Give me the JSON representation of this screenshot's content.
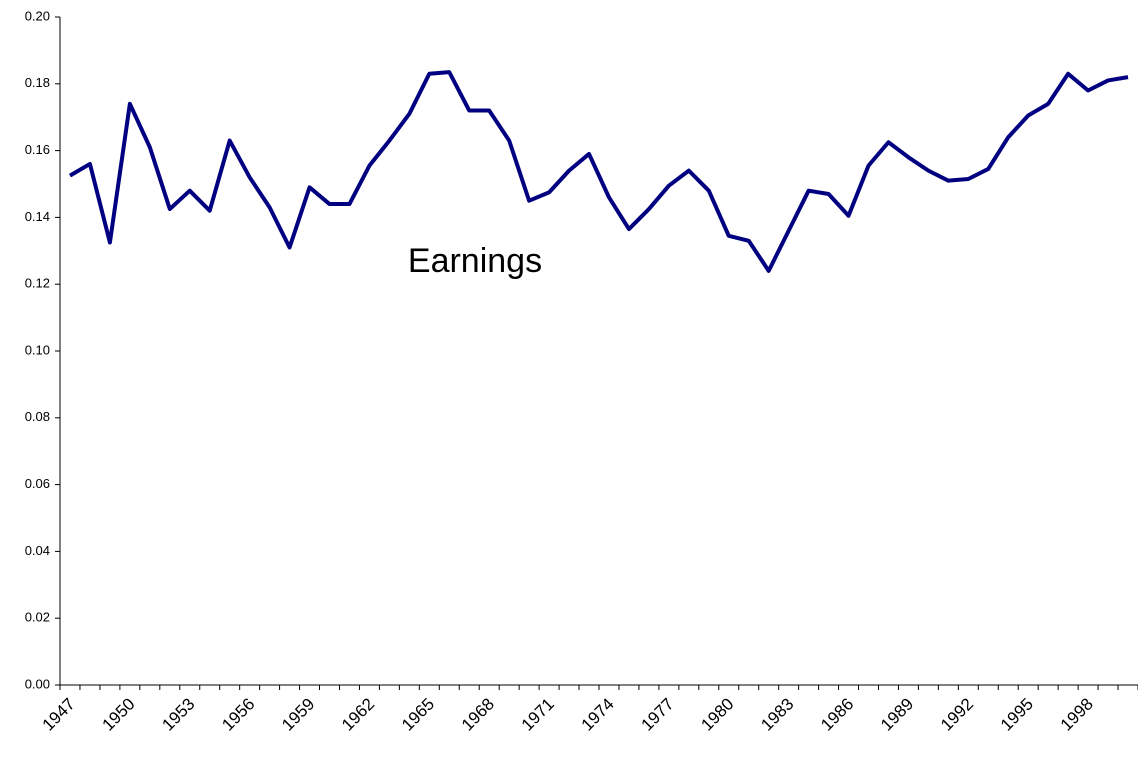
{
  "chart_data": {
    "type": "line",
    "annotation": "Earnings",
    "categories": [
      "1947",
      null,
      null,
      "1950",
      null,
      null,
      "1953",
      null,
      null,
      "1956",
      null,
      null,
      "1959",
      null,
      null,
      "1962",
      null,
      null,
      "1965",
      null,
      null,
      "1968",
      null,
      null,
      "1971",
      null,
      null,
      "1974",
      null,
      null,
      "1977",
      null,
      null,
      "1980",
      null,
      null,
      "1983",
      null,
      null,
      "1986",
      null,
      null,
      "1989",
      null,
      null,
      "1992",
      null,
      null,
      "1995",
      null,
      null,
      "1998",
      null,
      null
    ],
    "series": [
      {
        "name": "Earnings",
        "color": "#000080",
        "values": [
          0.1525,
          0.156,
          0.1325,
          0.174,
          0.161,
          0.1425,
          0.148,
          0.142,
          0.163,
          0.152,
          0.143,
          0.131,
          0.149,
          0.144,
          0.144,
          0.1555,
          0.163,
          0.171,
          0.183,
          0.1835,
          0.172,
          0.172,
          0.163,
          0.145,
          0.1475,
          0.154,
          0.159,
          0.146,
          0.1365,
          0.1425,
          0.1495,
          0.154,
          0.148,
          0.1345,
          0.133,
          0.124,
          0.136,
          0.148,
          0.147,
          0.1405,
          0.1555,
          0.1625,
          0.158,
          0.154,
          0.151,
          0.1515,
          0.1545,
          0.164,
          0.1705,
          0.174,
          0.183,
          0.178,
          0.181,
          0.182
        ]
      }
    ],
    "ylim": [
      0,
      0.2
    ],
    "yticks": [
      {
        "value": 0,
        "label": "0.00"
      },
      {
        "value": 0.02,
        "label": "0.02"
      },
      {
        "value": 0.04,
        "label": "0.04"
      },
      {
        "value": 0.06,
        "label": "0.06"
      },
      {
        "value": 0.08,
        "label": "0.08"
      },
      {
        "value": 0.1,
        "label": "0.10"
      },
      {
        "value": 0.12,
        "label": "0.12"
      },
      {
        "value": 0.14,
        "label": "0.14"
      },
      {
        "value": 0.16,
        "label": "0.16"
      },
      {
        "value": 0.18,
        "label": "0.18"
      },
      {
        "value": 0.2,
        "label": "0.20"
      }
    ],
    "grid": false
  }
}
